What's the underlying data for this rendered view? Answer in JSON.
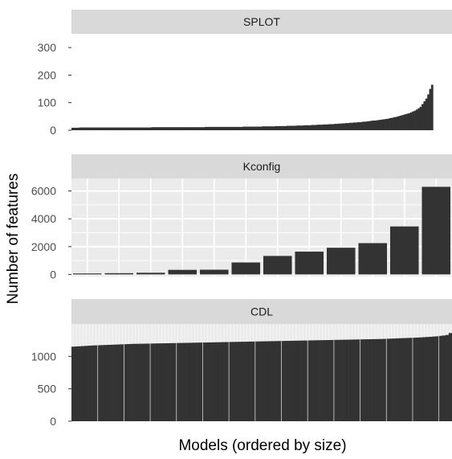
{
  "chart_data": {
    "type": "bar",
    "xlabel": "Models (ordered by size)",
    "ylabel": "Number of features",
    "colors": {
      "bar": "#333333",
      "panel_bg": "#ebebeb",
      "strip_bg": "#d9d9d9",
      "grid": "#ffffff"
    },
    "panels": [
      {
        "title": "SPLOT",
        "ylim": [
          0,
          350
        ],
        "y_ticks": [
          0,
          100,
          200,
          300
        ],
        "n_models": 200,
        "values": [
          9,
          9,
          9,
          9,
          10,
          10,
          10,
          10,
          10,
          10,
          10,
          10,
          10,
          10,
          10,
          10,
          10,
          10,
          10,
          10,
          10,
          10,
          10,
          10,
          10,
          10,
          10,
          10,
          10,
          10,
          10,
          10,
          10,
          10,
          10,
          10,
          10,
          10,
          10,
          10,
          10,
          10,
          11,
          11,
          11,
          11,
          11,
          11,
          11,
          11,
          11,
          11,
          11,
          11,
          11,
          11,
          11,
          11,
          11,
          11,
          11,
          11,
          11,
          11,
          11,
          11,
          11,
          11,
          11,
          11,
          12,
          12,
          12,
          12,
          12,
          12,
          12,
          12,
          12,
          12,
          12,
          12,
          12,
          12,
          12,
          12,
          12,
          12,
          12,
          12,
          13,
          13,
          13,
          13,
          13,
          13,
          13,
          13,
          13,
          13,
          14,
          14,
          14,
          14,
          14,
          14,
          14,
          15,
          15,
          15,
          15,
          15,
          15,
          16,
          16,
          16,
          16,
          16,
          17,
          17,
          17,
          17,
          18,
          18,
          18,
          18,
          19,
          19,
          19,
          20,
          20,
          20,
          21,
          21,
          21,
          22,
          22,
          22,
          23,
          23,
          24,
          24,
          25,
          25,
          26,
          26,
          27,
          27,
          28,
          28,
          29,
          29,
          30,
          31,
          31,
          32,
          33,
          34,
          35,
          35,
          36,
          37,
          38,
          39,
          40,
          41,
          42,
          44,
          45,
          47,
          48,
          50,
          52,
          54,
          56,
          58,
          60,
          62,
          65,
          68,
          71,
          75,
          80,
          85,
          95,
          105,
          115,
          130,
          150,
          165
        ]
      },
      {
        "title": "Kconfig",
        "ylim": [
          -150,
          6900
        ],
        "y_ticks": [
          0,
          2000,
          4000,
          6000
        ],
        "n_models": 12,
        "values": [
          70,
          90,
          120,
          330,
          340,
          860,
          1330,
          1640,
          1920,
          2250,
          3450,
          6300
        ]
      },
      {
        "title": "CDL",
        "ylim": [
          0,
          1500
        ],
        "y_ticks": [
          0,
          500,
          1000
        ],
        "n_models": 116,
        "values": [
          1150,
          1153,
          1156,
          1159,
          1162,
          1165,
          1168,
          1170,
          1172,
          1174,
          1176,
          1178,
          1180,
          1182,
          1184,
          1186,
          1188,
          1190,
          1192,
          1193,
          1194,
          1195,
          1196,
          1197,
          1198,
          1199,
          1200,
          1201,
          1202,
          1203,
          1204,
          1205,
          1206,
          1207,
          1208,
          1209,
          1210,
          1211,
          1212,
          1213,
          1214,
          1215,
          1216,
          1217,
          1218,
          1219,
          1220,
          1221,
          1222,
          1223,
          1224,
          1225,
          1226,
          1227,
          1228,
          1229,
          1230,
          1231,
          1232,
          1233,
          1234,
          1235,
          1236,
          1237,
          1238,
          1239,
          1240,
          1241,
          1242,
          1243,
          1244,
          1245,
          1246,
          1247,
          1248,
          1249,
          1250,
          1251,
          1252,
          1253,
          1254,
          1255,
          1256,
          1257,
          1258,
          1259,
          1260,
          1261,
          1262,
          1263,
          1264,
          1265,
          1266,
          1267,
          1268,
          1270,
          1272,
          1274,
          1276,
          1278,
          1280,
          1282,
          1284,
          1286,
          1288,
          1290,
          1293,
          1296,
          1299,
          1302,
          1306,
          1310,
          1316,
          1322,
          1330,
          1360
        ]
      }
    ]
  }
}
